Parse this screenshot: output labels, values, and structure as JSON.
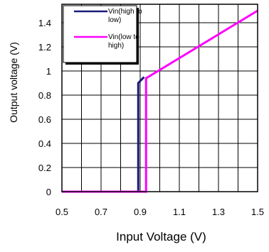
{
  "chart_data": {
    "type": "line",
    "xlabel": "Input Voltage (V)",
    "ylabel": "Output voltage (V)",
    "xlim": [
      0.5,
      1.5
    ],
    "ylim": [
      0,
      1.5
    ],
    "x_ticks": [
      "0.5",
      "0.7",
      "0.9",
      "1.1",
      "1.3",
      "1.5"
    ],
    "y_ticks": [
      "0",
      "0.2",
      "0.4",
      "0.6",
      "0.8",
      "1",
      "1.2",
      "1.4"
    ],
    "grid": true,
    "legend_position": "top-left",
    "series": [
      {
        "name_lines": [
          "Vin(high to",
          "low)"
        ],
        "color": "#1a1a7a",
        "x": [
          0.5,
          0.89,
          0.89,
          0.92
        ],
        "y": [
          0,
          0,
          0.9,
          0.95
        ]
      },
      {
        "name_lines": [
          "Vin(low to",
          "high)"
        ],
        "color": "#ff00ff",
        "x": [
          0.5,
          0.93,
          0.93,
          1.5
        ],
        "y": [
          0,
          0,
          0.94,
          1.5
        ]
      }
    ]
  }
}
